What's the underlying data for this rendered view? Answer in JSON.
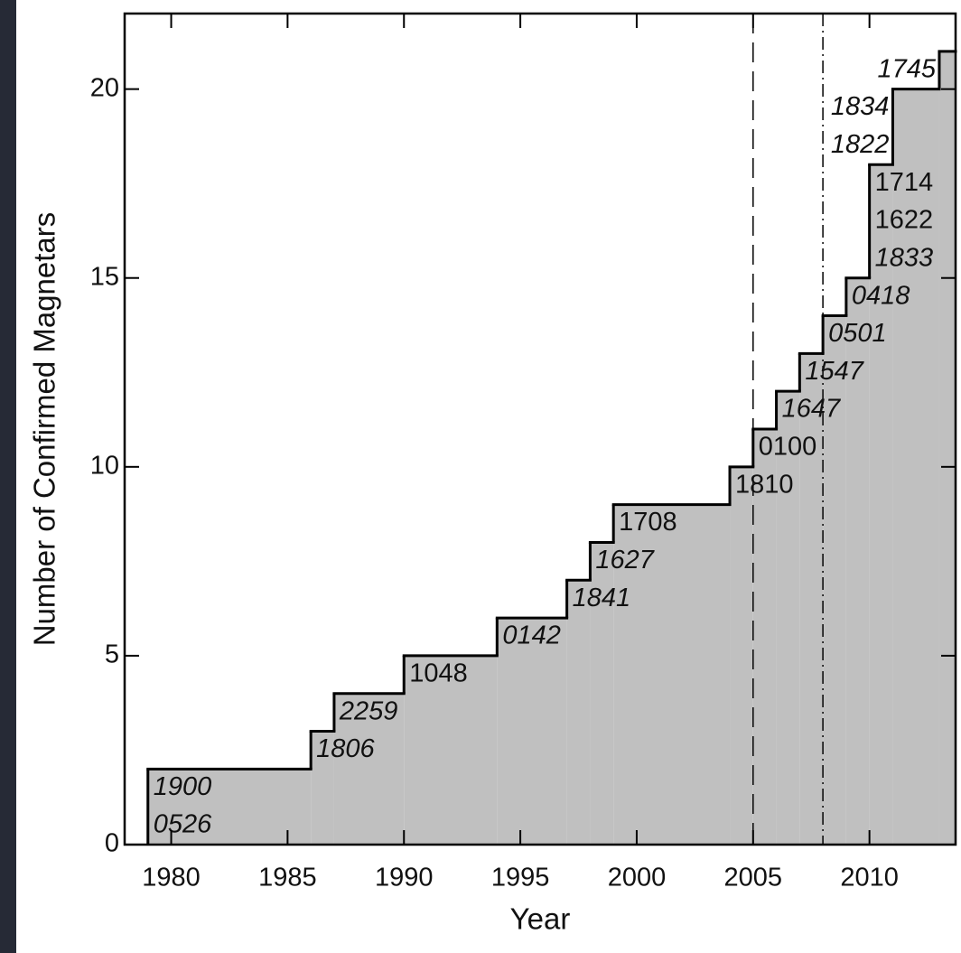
{
  "chart_data": {
    "type": "step",
    "x_label": "Year",
    "y_label": "Number of Confirmed Magnetars",
    "x": [
      1979,
      1986,
      1987,
      1990,
      1994,
      1997,
      1998,
      1999,
      2004,
      2005,
      2006,
      2007,
      2008,
      2009,
      2010,
      2011,
      2013
    ],
    "values": [
      2,
      3,
      4,
      5,
      6,
      7,
      8,
      9,
      10,
      11,
      12,
      13,
      14,
      15,
      18,
      20,
      21
    ],
    "labels": [
      [
        {
          "text": "1900",
          "italic": true
        },
        {
          "text": "0526",
          "italic": true
        }
      ],
      [
        {
          "text": "1806",
          "italic": true
        }
      ],
      [
        {
          "text": "2259",
          "italic": true
        }
      ],
      [
        {
          "text": "1048",
          "italic": false
        }
      ],
      [
        {
          "text": "0142",
          "italic": true
        }
      ],
      [
        {
          "text": "1841",
          "italic": true
        }
      ],
      [
        {
          "text": "1627",
          "italic": true
        }
      ],
      [
        {
          "text": "1708",
          "italic": false
        }
      ],
      [
        {
          "text": "1810",
          "italic": false
        }
      ],
      [
        {
          "text": "0100",
          "italic": false
        }
      ],
      [
        {
          "text": "1647",
          "italic": true
        }
      ],
      [
        {
          "text": "1547",
          "italic": true
        }
      ],
      [
        {
          "text": "0501",
          "italic": true
        }
      ],
      [
        {
          "text": "0418",
          "italic": true
        }
      ],
      [
        {
          "text": "1714",
          "italic": false
        },
        {
          "text": "1622",
          "italic": false
        },
        {
          "text": "1833",
          "italic": true
        }
      ],
      [
        {
          "text": "1834",
          "italic": true
        },
        {
          "text": "1822",
          "italic": true
        }
      ],
      [
        {
          "text": "1745",
          "italic": true
        }
      ]
    ],
    "color": "#c0c0c0",
    "xlim": [
      1978,
      2013.7
    ],
    "ylim": [
      0,
      22
    ],
    "xticks": [
      1980,
      1985,
      1990,
      1995,
      2000,
      2005,
      2010
    ],
    "yticks": [
      0,
      5,
      10,
      15,
      20
    ],
    "vlines": [
      {
        "x": 2005,
        "style": "dashed"
      },
      {
        "x": 2008,
        "style": "dashdot"
      }
    ]
  }
}
